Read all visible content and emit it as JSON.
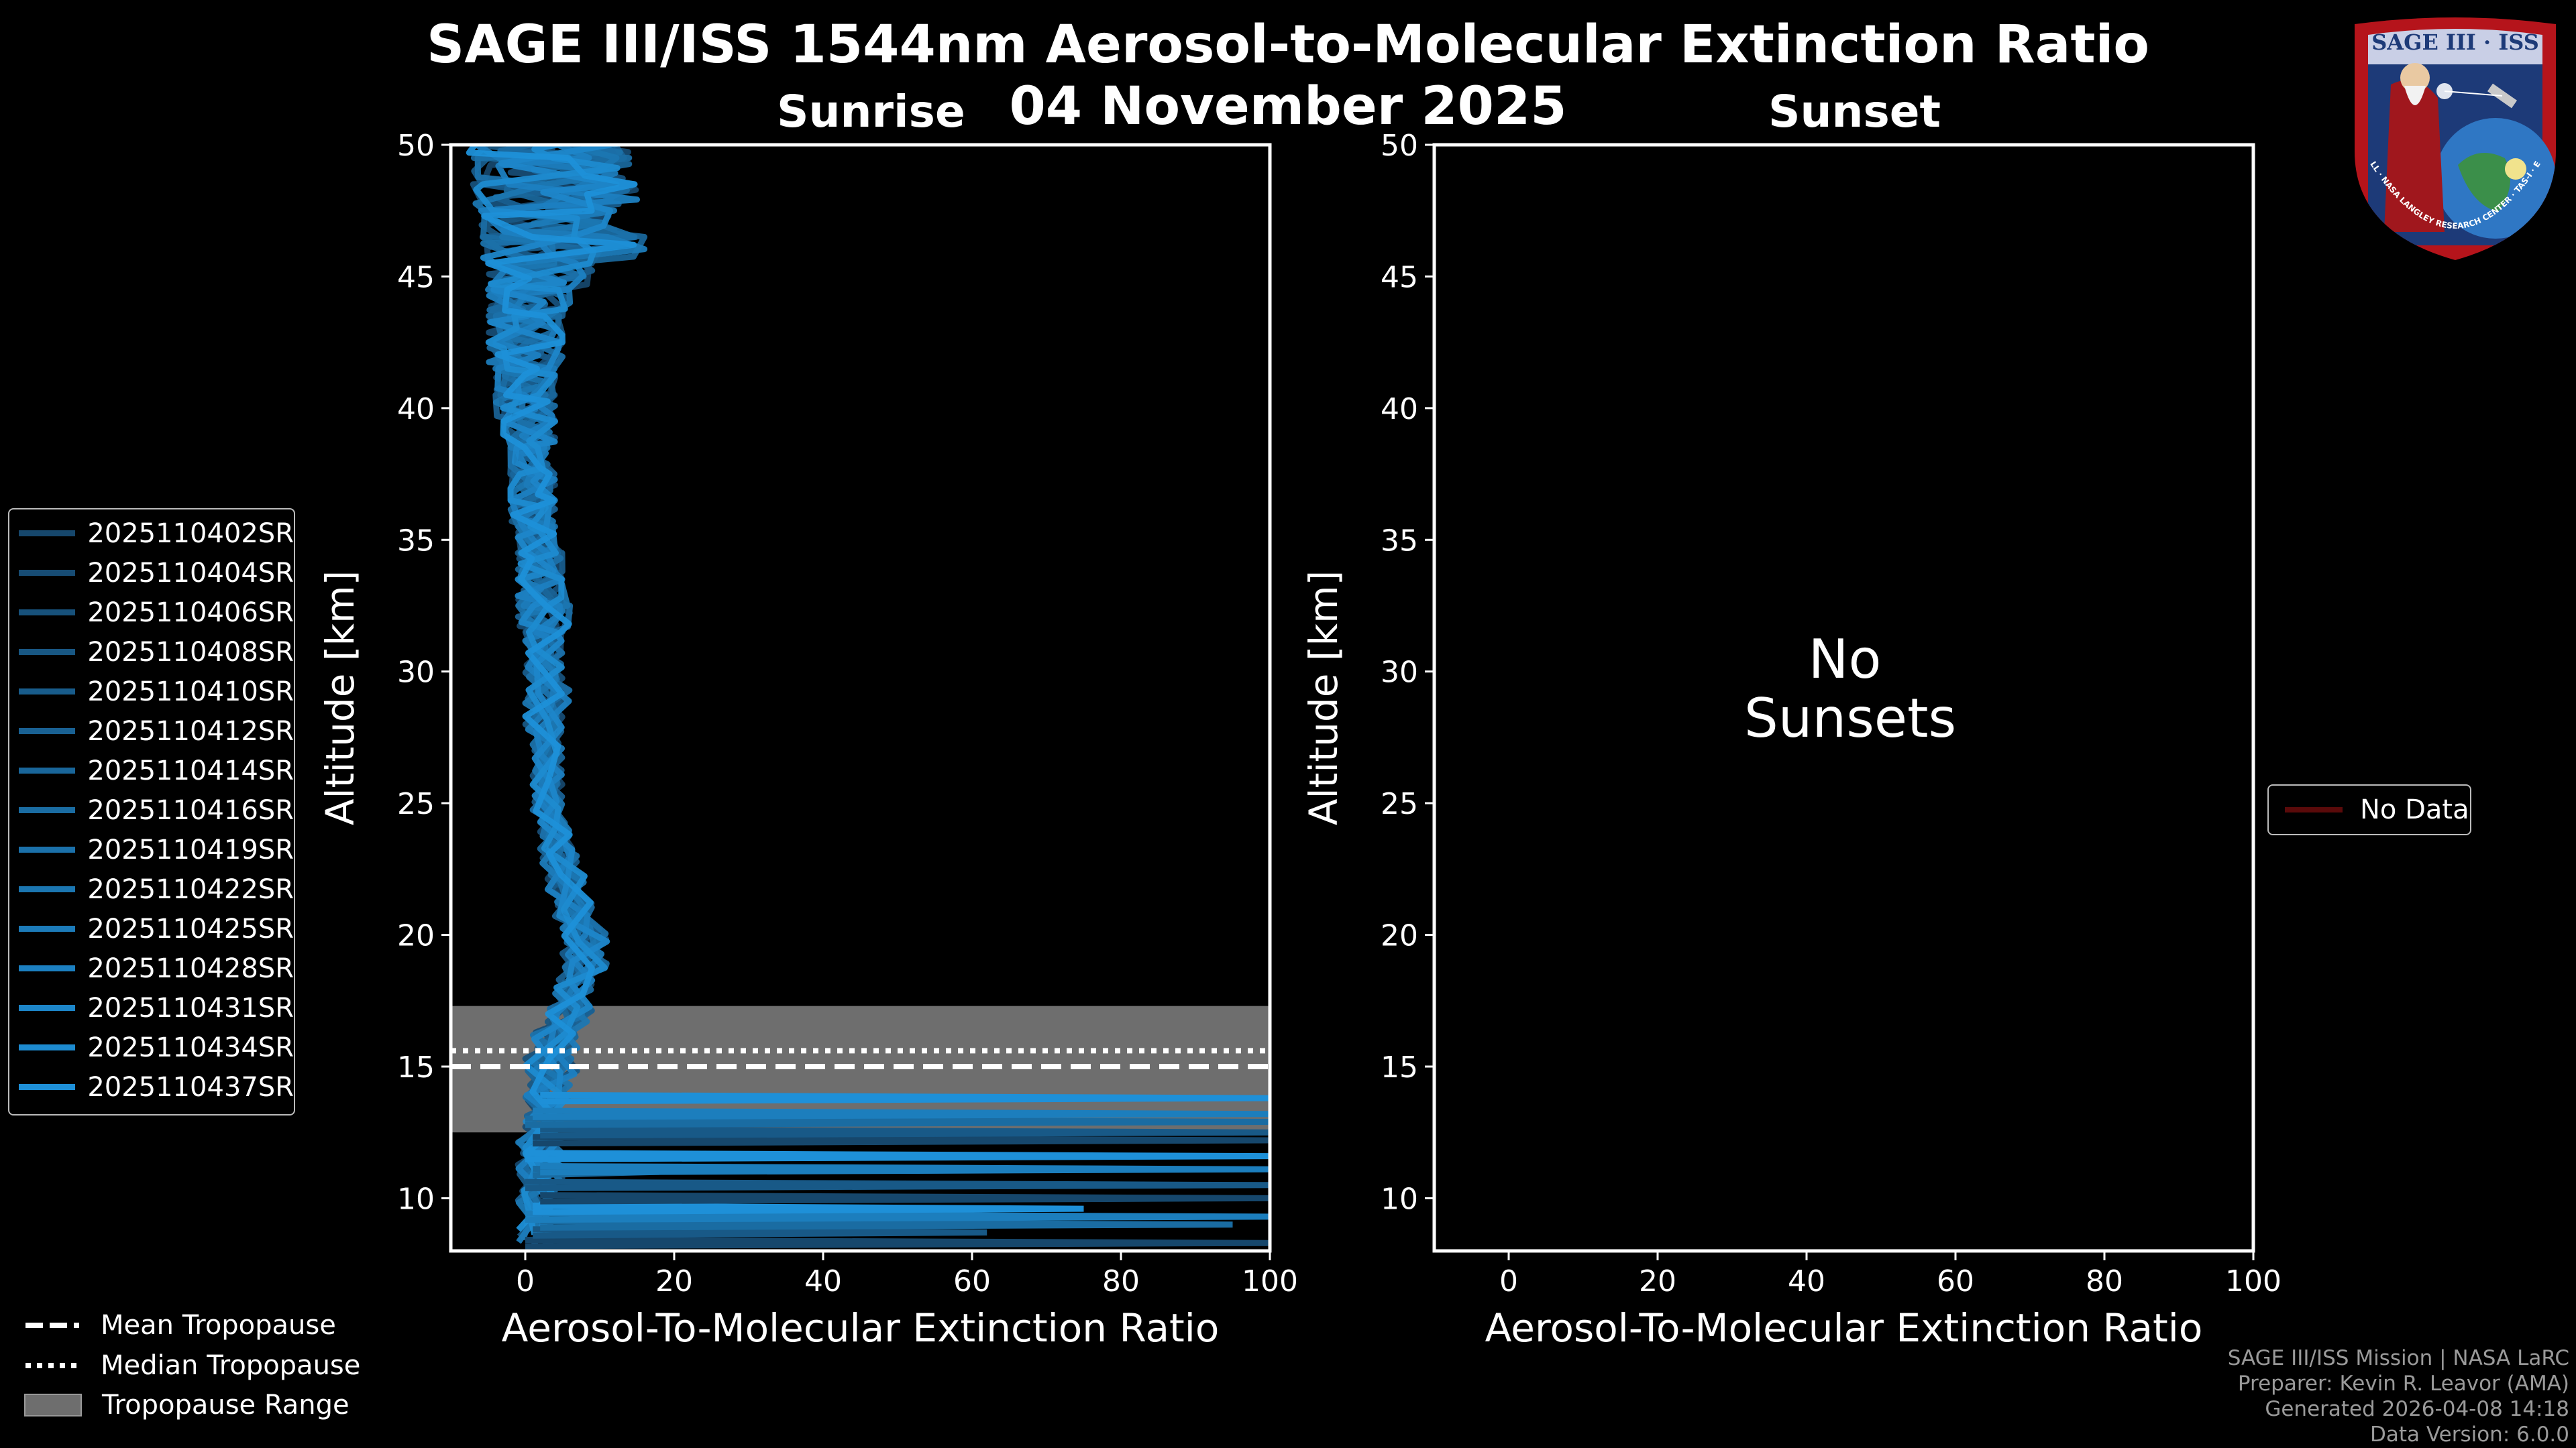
{
  "header": {
    "title": "SAGE III/ISS 1544nm Aerosol-to-Molecular Extinction Ratio",
    "date": "04 November 2025"
  },
  "logo": {
    "text": "SAGE III · ISS",
    "ring_text": "BALL · NASA LANGLEY RESEARCH CENTER · TAS-I · ESA"
  },
  "footer": {
    "mission": "SAGE III/ISS Mission | NASA LaRC",
    "preparer": "Preparer: Kevin R. Leavor (AMA)",
    "generated": "Generated 2026-04-08 14:18",
    "version": "Data Version: 6.0.0"
  },
  "sunset_panel": {
    "no_data_text_1": "No",
    "no_data_text_2": "Sunsets"
  },
  "legends": {
    "events": [
      "2025110402SR",
      "2025110404SR",
      "2025110406SR",
      "2025110408SR",
      "2025110410SR",
      "2025110412SR",
      "2025110414SR",
      "2025110416SR",
      "2025110419SR",
      "2025110422SR",
      "2025110425SR",
      "2025110428SR",
      "2025110431SR",
      "2025110434SR",
      "2025110437SR"
    ],
    "tropopause": {
      "mean": "Mean Tropopause",
      "median": "Median Tropopause",
      "range": "Tropopause Range"
    },
    "no_data": "No Data"
  },
  "colors": {
    "series_dark": "#16476c",
    "series_light": "#1e90d8",
    "trop_range": "#6e6e6e",
    "no_data": "#5a0a0a",
    "background": "#000000",
    "axis": "#ffffff"
  },
  "chart_data": [
    {
      "type": "line",
      "title": "Sunrise",
      "xlabel": "Aerosol-To-Molecular Extinction Ratio",
      "ylabel": "Altitude [km]",
      "xlim": [
        -10,
        100
      ],
      "ylim": [
        8,
        50
      ],
      "x_ticks": [
        0,
        20,
        40,
        60,
        80,
        100
      ],
      "y_ticks": [
        10,
        15,
        20,
        25,
        30,
        35,
        40,
        45,
        50
      ],
      "tropopause": {
        "mean_km": 15.0,
        "median_km": 15.6,
        "range_km": [
          12.5,
          17.3
        ]
      },
      "profile_envelope": {
        "altitude_km": [
          8.5,
          10,
          11,
          12,
          13,
          14,
          15,
          16,
          17,
          18,
          19,
          20,
          21,
          22,
          23,
          24,
          25,
          26,
          27,
          28,
          29,
          30,
          31,
          32,
          33,
          34,
          35,
          36,
          37,
          38,
          39,
          40,
          41,
          42,
          43,
          44,
          45,
          46,
          47,
          48,
          49,
          50
        ],
        "ratio_min": [
          -1,
          -1,
          -1,
          -1,
          0,
          0,
          0,
          1,
          3,
          4,
          5,
          5,
          4,
          3,
          2,
          2,
          1,
          1,
          1,
          0,
          0,
          0,
          0,
          -1,
          -1,
          -1,
          -1,
          -2,
          -2,
          -2,
          -3,
          -4,
          -4,
          -5,
          -5,
          -5,
          -5,
          -6,
          -6,
          -7,
          -7,
          -8
        ],
        "ratio_max": [
          4,
          4,
          5,
          5,
          5,
          6,
          7,
          7,
          9,
          9,
          11,
          11,
          9,
          8,
          7,
          6,
          5,
          5,
          5,
          5,
          6,
          5,
          5,
          6,
          5,
          5,
          4,
          4,
          4,
          3,
          4,
          4,
          4,
          5,
          5,
          6,
          9,
          16,
          12,
          15,
          14,
          14
        ]
      },
      "low_altitude_spikes": [
        {
          "altitude_km": 8.3,
          "ratio": 100
        },
        {
          "altitude_km": 8.7,
          "ratio": 62
        },
        {
          "altitude_km": 9.0,
          "ratio": 95
        },
        {
          "altitude_km": 9.3,
          "ratio": 100
        },
        {
          "altitude_km": 9.6,
          "ratio": 75
        },
        {
          "altitude_km": 10.0,
          "ratio": 100
        },
        {
          "altitude_km": 10.5,
          "ratio": 100
        },
        {
          "altitude_km": 11.0,
          "ratio": 18
        },
        {
          "altitude_km": 11.1,
          "ratio": 100
        },
        {
          "altitude_km": 11.6,
          "ratio": 100
        },
        {
          "altitude_km": 12.2,
          "ratio": 100
        },
        {
          "altitude_km": 12.5,
          "ratio": 100
        },
        {
          "altitude_km": 12.9,
          "ratio": 100
        },
        {
          "altitude_km": 13.2,
          "ratio": 100
        },
        {
          "altitude_km": 13.8,
          "ratio": 100
        }
      ],
      "series": [
        "2025110402SR",
        "2025110404SR",
        "2025110406SR",
        "2025110408SR",
        "2025110410SR",
        "2025110412SR",
        "2025110414SR",
        "2025110416SR",
        "2025110419SR",
        "2025110422SR",
        "2025110425SR",
        "2025110428SR",
        "2025110431SR",
        "2025110434SR",
        "2025110437SR"
      ]
    },
    {
      "type": "line",
      "title": "Sunset",
      "xlabel": "Aerosol-To-Molecular Extinction Ratio",
      "ylabel": "Altitude [km]",
      "xlim": [
        -10,
        100
      ],
      "ylim": [
        8,
        50
      ],
      "x_ticks": [
        0,
        20,
        40,
        60,
        80,
        100
      ],
      "y_ticks": [
        10,
        15,
        20,
        25,
        30,
        35,
        40,
        45,
        50
      ],
      "series": []
    }
  ]
}
